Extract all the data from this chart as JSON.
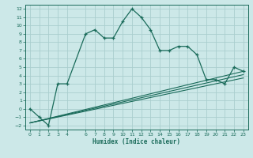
{
  "xlabel": "Humidex (Indice chaleur)",
  "bg_color": "#cce8e8",
  "line_color": "#1a6b5a",
  "grid_color": "#aacece",
  "xlim": [
    -0.5,
    23.5
  ],
  "ylim": [
    -2.5,
    12.5
  ],
  "xticks": [
    0,
    1,
    2,
    3,
    4,
    6,
    7,
    8,
    9,
    10,
    11,
    12,
    13,
    14,
    15,
    16,
    17,
    18,
    19,
    20,
    21,
    22,
    23
  ],
  "yticks": [
    -2,
    -1,
    0,
    1,
    2,
    3,
    4,
    5,
    6,
    7,
    8,
    9,
    10,
    11,
    12
  ],
  "main_line_x": [
    0,
    1,
    2,
    3,
    4,
    6,
    7,
    8,
    9,
    10,
    11,
    12,
    13,
    14,
    15,
    16,
    17,
    18,
    19,
    20,
    21,
    22,
    23
  ],
  "main_line_y": [
    0,
    -1,
    -2,
    3,
    3,
    9,
    9.5,
    8.5,
    8.5,
    10.5,
    12,
    11,
    9.5,
    7,
    7,
    7.5,
    7.5,
    6.5,
    3.5,
    3.5,
    3,
    5,
    4.5
  ],
  "reg_lines": [
    {
      "x": [
        0,
        23
      ],
      "y": [
        -1.7,
        4.5
      ]
    },
    {
      "x": [
        0,
        23
      ],
      "y": [
        -1.7,
        4.1
      ]
    },
    {
      "x": [
        0,
        23
      ],
      "y": [
        -1.7,
        3.7
      ]
    }
  ]
}
